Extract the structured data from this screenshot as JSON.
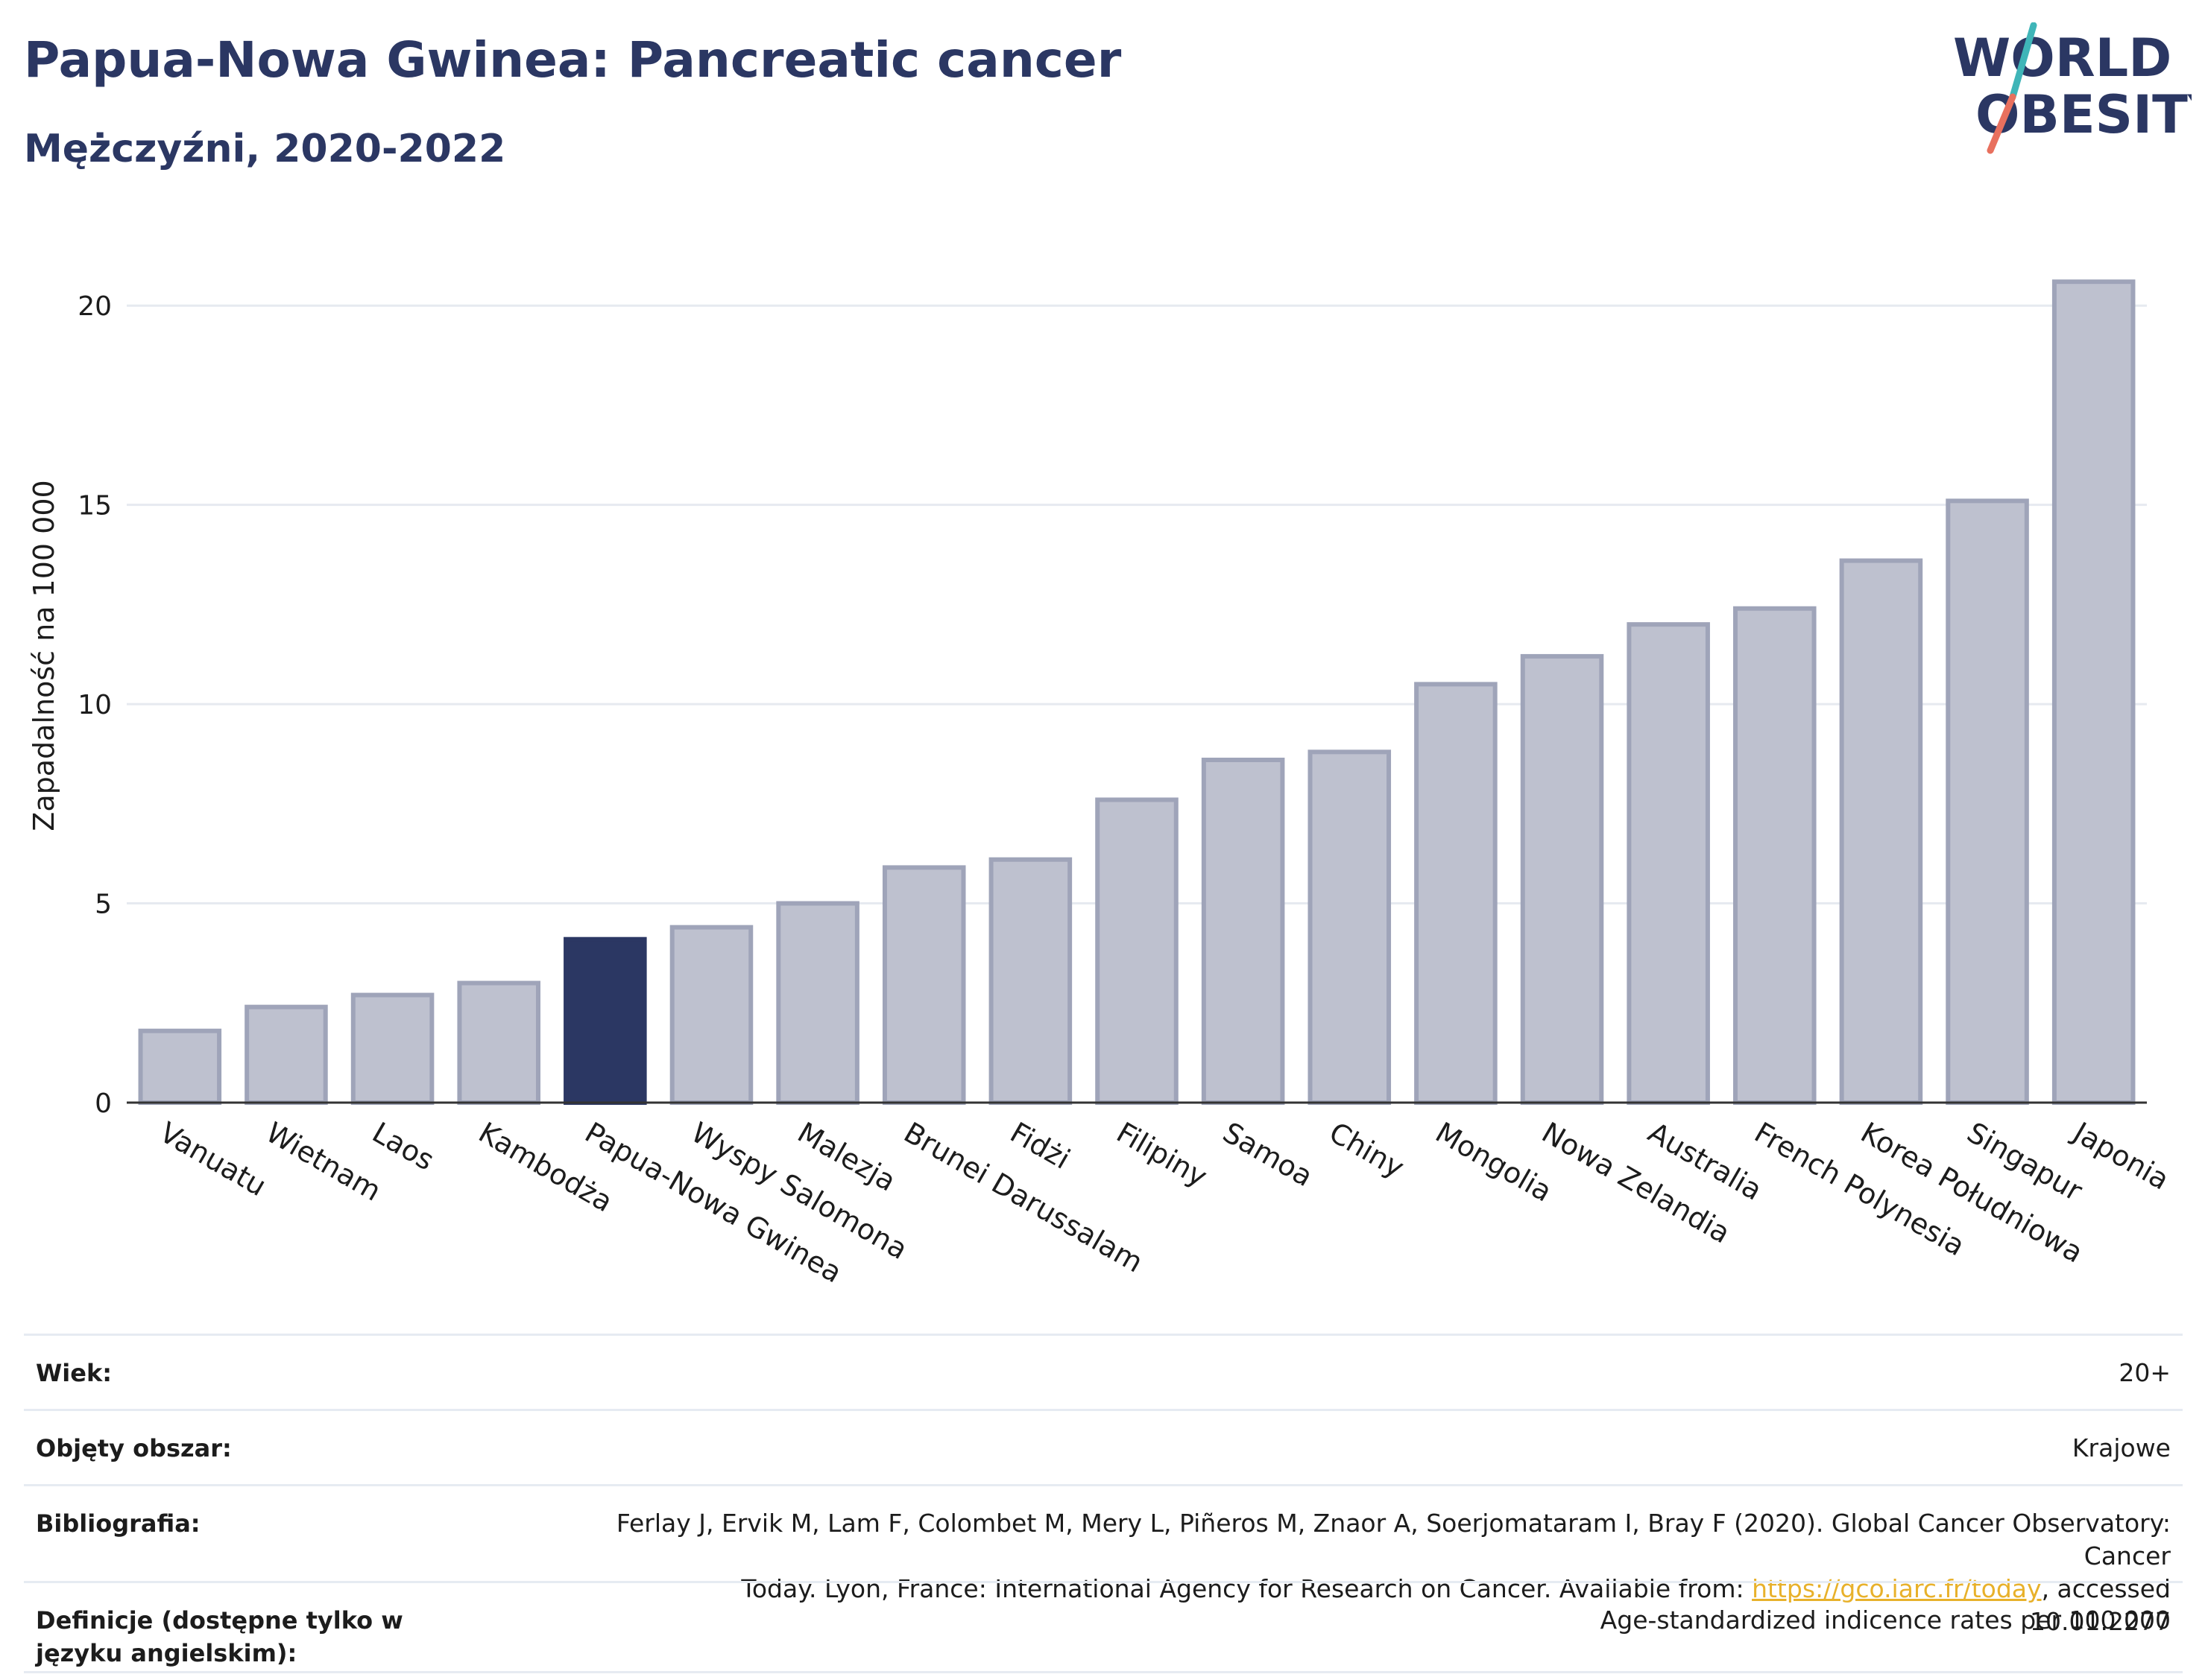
{
  "header": {
    "title": "Papua-Nowa Gwinea: Pancreatic cancer",
    "subtitle": "Mężczyźni, 2020-2022"
  },
  "logo": {
    "line1": "WORLD",
    "line2": "OBESITY"
  },
  "colors": {
    "highlight": "#2b3763",
    "bar_fill": "#bec1cf",
    "bar_stroke": "#9fa4b9",
    "grid": "#e6eaf0",
    "accent_teal": "#3fb5b8",
    "accent_coral": "#e8705e",
    "link": "#e8b12b"
  },
  "chart_data": {
    "type": "bar",
    "title": "Papua-Nowa Gwinea: Pancreatic cancer",
    "subtitle": "Mężczyźni, 2020-2022",
    "xlabel": "",
    "ylabel": "Zapadalność na 100 000",
    "ylim": [
      0,
      21.5
    ],
    "yticks": [
      0,
      5,
      10,
      15,
      20
    ],
    "grid": true,
    "highlight": "Papua-Nowa Gwinea",
    "categories": [
      "Vanuatu",
      "Wietnam",
      "Laos",
      "Kambodża",
      "Papua-Nowa Gwinea",
      "Wyspy Salomona",
      "Malezja",
      "Brunei Darussalam",
      "Fidżi",
      "Filipiny",
      "Samoa",
      "Chiny",
      "Mongolia",
      "Nowa Zelandia",
      "Australia",
      "French Polynesia",
      "Korea Południowa",
      "Singapur",
      "Japonia"
    ],
    "values": [
      1.8,
      2.4,
      2.7,
      3.0,
      4.1,
      4.4,
      5.0,
      5.9,
      6.1,
      7.6,
      8.6,
      8.8,
      10.5,
      11.2,
      12.0,
      12.4,
      13.6,
      15.1,
      20.6
    ]
  },
  "meta": {
    "age_label": "Wiek:",
    "age_value": "20+",
    "area_label": "Objęty obszar:",
    "area_value": "Krajowe",
    "bib_label": "Bibliografia:",
    "bib_line1": "Ferlay J, Ervik M, Lam F, Colombet M, Mery L, Piñeros M, Znaor A, Soerjomataram I, Bray F (2020). Global Cancer Observatory: Cancer",
    "bib_line2_pre": "Today. Lyon, France: International Agency for Research on Cancer. Available from: ",
    "bib_link": "https://gco.iarc.fr/today",
    "bib_line2_post": ", accessed 10.01.2277",
    "def_label": "Definicje (dostępne tylko w języku angielskim):",
    "def_value": "Age-standardized indicence rates per 100 000"
  }
}
